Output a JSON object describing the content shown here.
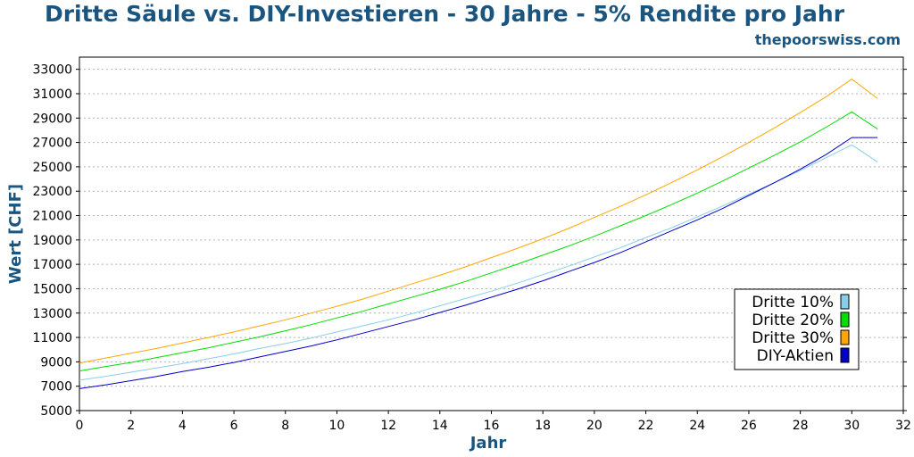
{
  "chart_data": {
    "type": "line",
    "title": "Dritte Säule vs. DIY-Investieren - 30 Jahre - 5% Rendite pro Jahr",
    "subtitle": "thepoorswiss.com",
    "xlabel": "Jahr",
    "ylabel": "Wert [CHF]",
    "xlim": [
      0,
      32
    ],
    "ylim": [
      5000,
      34000
    ],
    "xticks": [
      0,
      2,
      4,
      6,
      8,
      10,
      12,
      14,
      16,
      18,
      20,
      22,
      24,
      26,
      28,
      30,
      32
    ],
    "yticks": [
      5000,
      7000,
      9000,
      11000,
      13000,
      15000,
      17000,
      19000,
      21000,
      23000,
      25000,
      27000,
      29000,
      31000,
      33000
    ],
    "grid": true,
    "legend_position": "bottom-right",
    "x": [
      0,
      1,
      2,
      3,
      4,
      5,
      6,
      7,
      8,
      9,
      10,
      11,
      12,
      13,
      14,
      15,
      16,
      17,
      18,
      19,
      20,
      21,
      22,
      23,
      24,
      25,
      26,
      27,
      28,
      29,
      30,
      31
    ],
    "series": [
      {
        "name": "Dritte 10%",
        "color": "#87ceeb",
        "values": [
          7500,
          7800,
          8150,
          8500,
          8850,
          9250,
          9650,
          10100,
          10500,
          10950,
          11450,
          11950,
          12450,
          13000,
          13600,
          14200,
          14800,
          15450,
          16150,
          16850,
          17600,
          18350,
          19200,
          20000,
          20900,
          21800,
          22750,
          23700,
          24700,
          25750,
          26800,
          25400
        ]
      },
      {
        "name": "Dritte 20%",
        "color": "#00dd00",
        "values": [
          8250,
          8600,
          8950,
          9350,
          9750,
          10150,
          10600,
          11050,
          11550,
          12050,
          12600,
          13150,
          13750,
          14350,
          14950,
          15600,
          16300,
          17000,
          17750,
          18500,
          19300,
          20150,
          21000,
          21900,
          22850,
          23850,
          24900,
          25950,
          27050,
          28250,
          29500,
          28100
        ]
      },
      {
        "name": "Dritte 30%",
        "color": "#ffa500",
        "values": [
          8900,
          9300,
          9700,
          10100,
          10550,
          11000,
          11450,
          11950,
          12450,
          13000,
          13550,
          14150,
          14800,
          15450,
          16100,
          16800,
          17550,
          18300,
          19100,
          19950,
          20850,
          21750,
          22700,
          23700,
          24750,
          25850,
          27000,
          28200,
          29450,
          30750,
          32200,
          30600
        ]
      },
      {
        "name": "DIY-Aktien",
        "color": "#0000cc",
        "values": [
          6800,
          7100,
          7450,
          7800,
          8200,
          8550,
          8950,
          9400,
          9850,
          10300,
          10800,
          11350,
          11900,
          12450,
          13050,
          13650,
          14300,
          14950,
          15650,
          16400,
          17150,
          17950,
          18850,
          19750,
          20650,
          21600,
          22650,
          23700,
          24800,
          26000,
          27400,
          27400
        ]
      }
    ]
  }
}
